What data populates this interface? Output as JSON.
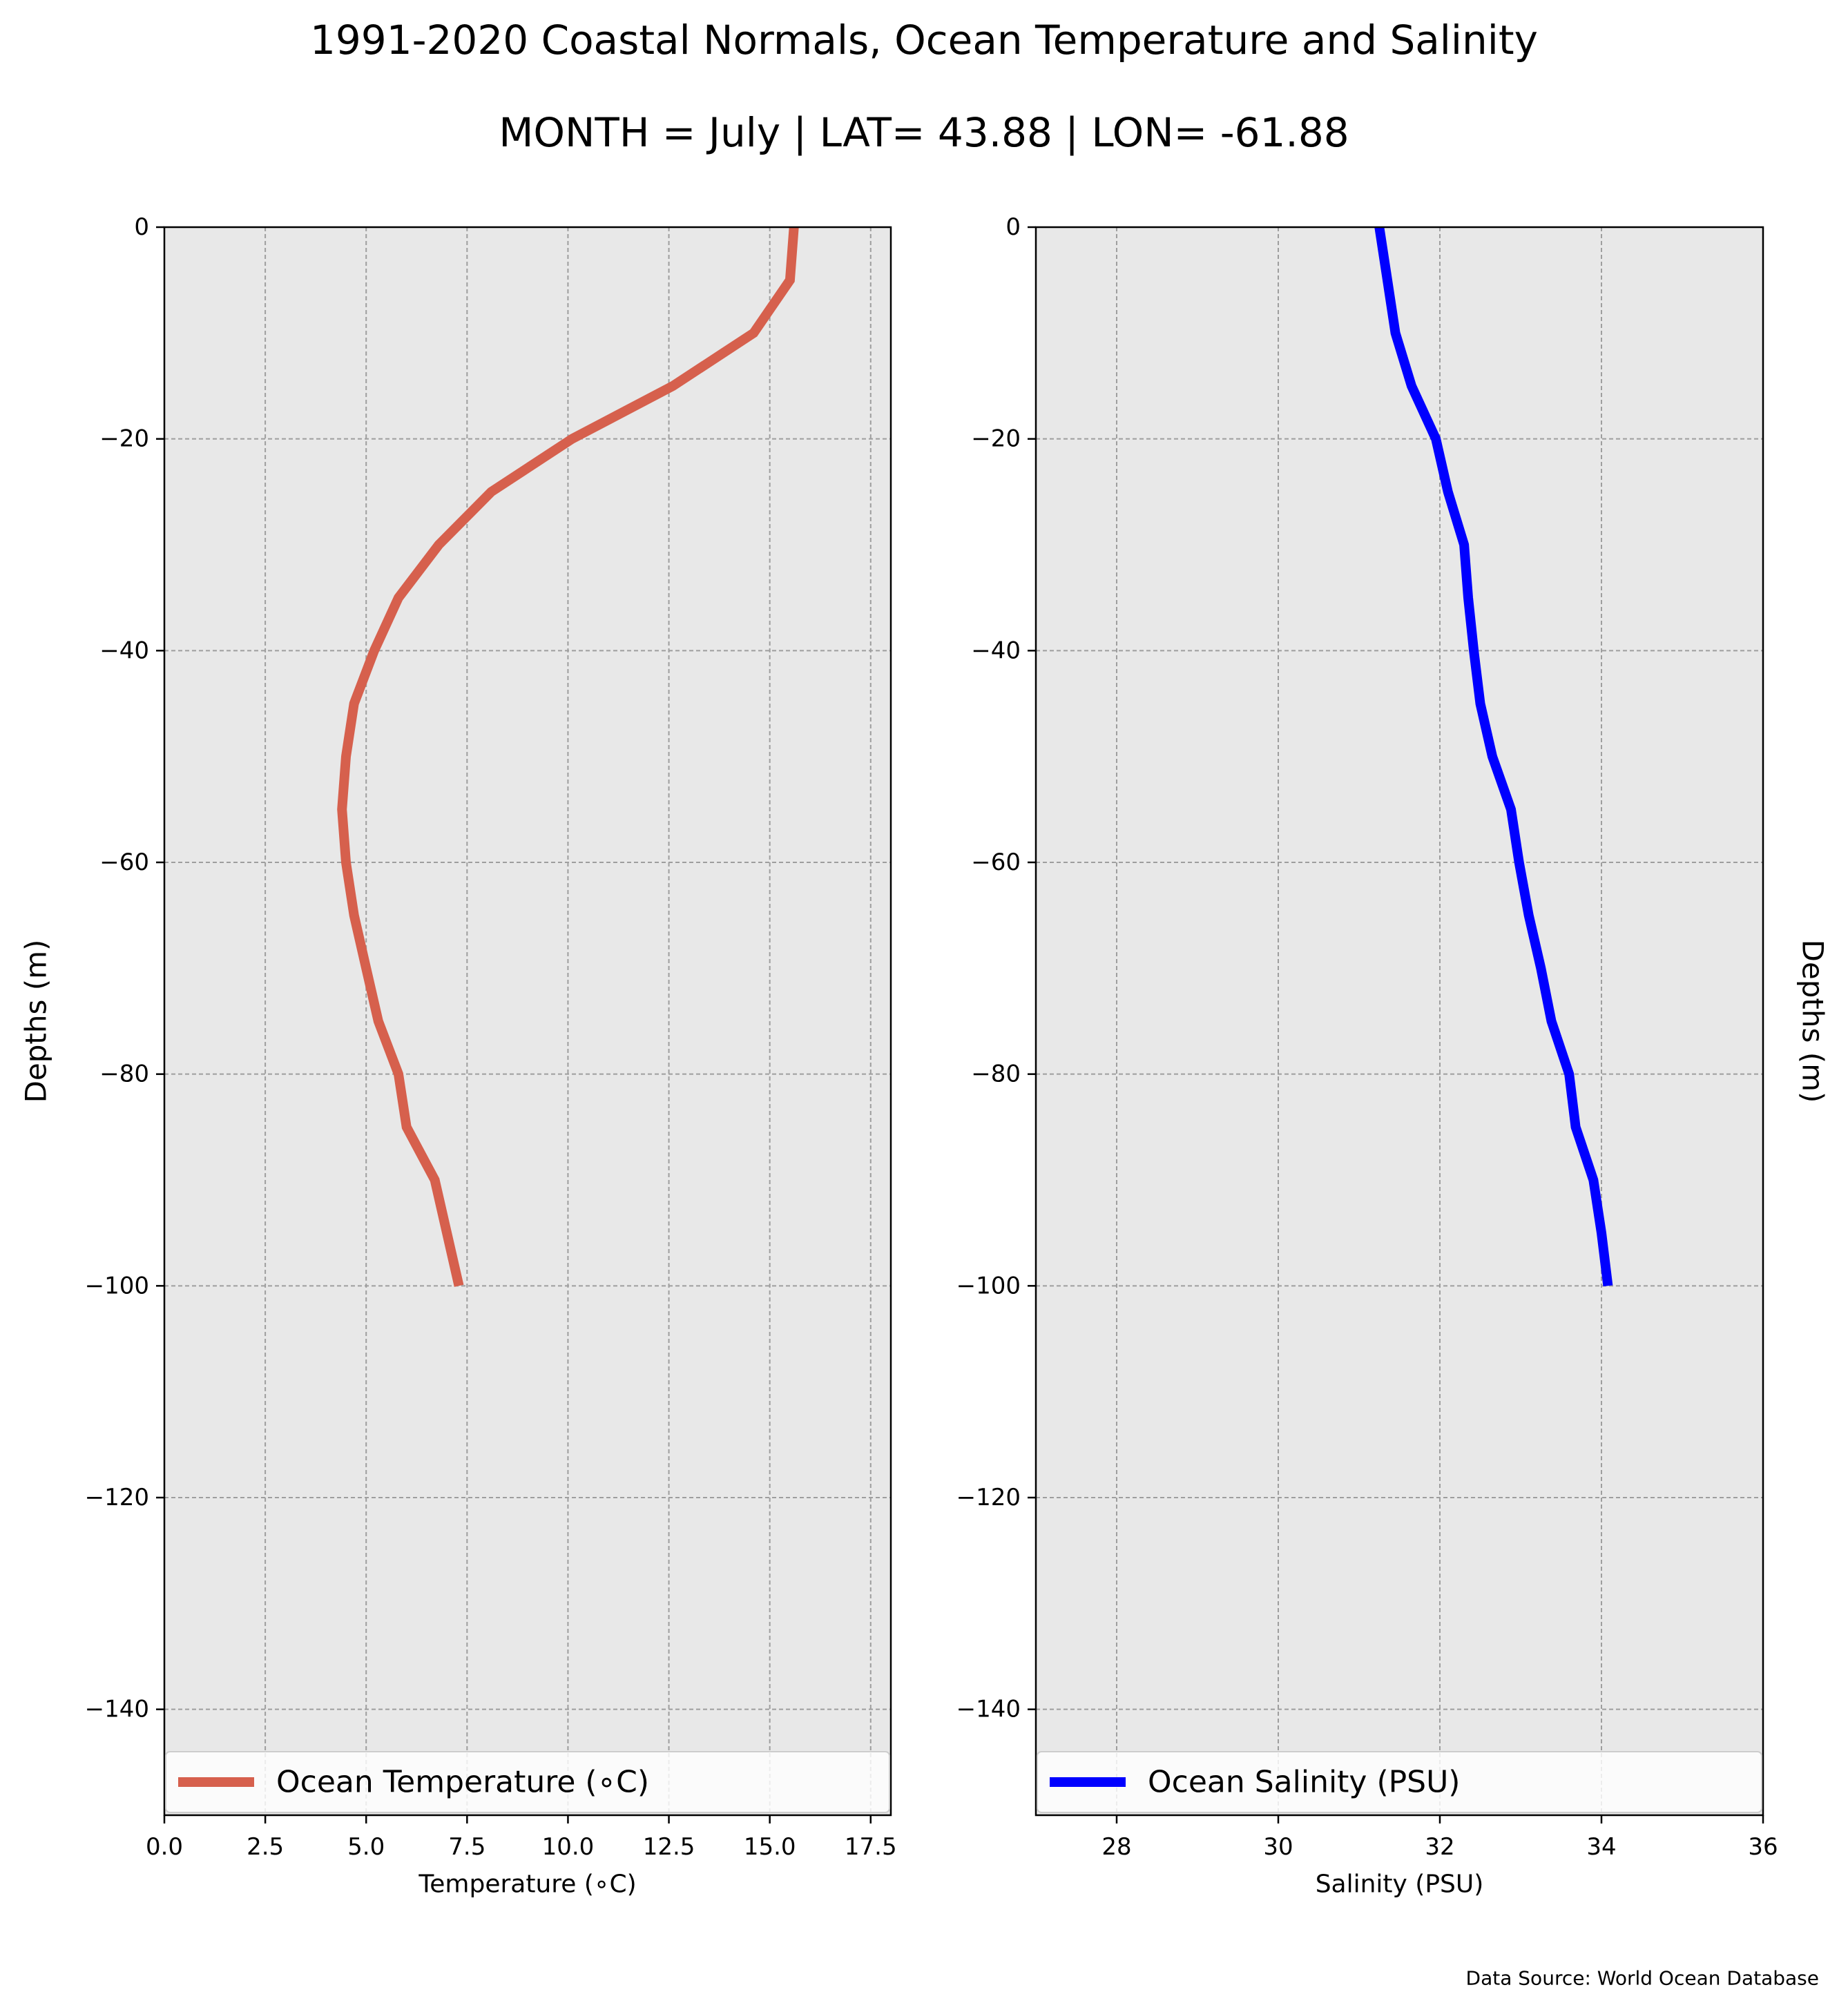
{
  "figure": {
    "title": "1991-2020 Coastal Normals, Ocean Temperature and Salinity",
    "subtitle": "MONTH = July | LAT= 43.88 | LON= -61.88",
    "source": "Data Source: World Ocean Database"
  },
  "chart_data": [
    {
      "type": "line",
      "xlabel": "Temperature (∘C)",
      "ylabel": "Depths (m)",
      "xlim": [
        0,
        18
      ],
      "ylim": [
        -150,
        0
      ],
      "xticks": [
        0,
        2.5,
        5,
        7.5,
        10,
        12.5,
        15,
        17.5
      ],
      "xtick_labels": [
        "0.0",
        "2.5",
        "5.0",
        "7.5",
        "10.0",
        "12.5",
        "15.0",
        "17.5"
      ],
      "yticks": [
        0,
        -20,
        -40,
        -60,
        -80,
        -100,
        -120,
        -140
      ],
      "ytick_labels": [
        "0",
        "−20",
        "−40",
        "−60",
        "−80",
        "−100",
        "−120",
        "−140"
      ],
      "grid": true,
      "legend": "lower-center",
      "ylabel_side": "left",
      "series": [
        {
          "name": "Ocean Temperature (∘C)",
          "color": "#d6604d",
          "x": [
            15.6,
            15.5,
            14.6,
            12.6,
            10.1,
            8.1,
            6.8,
            5.8,
            5.2,
            4.7,
            4.5,
            4.4,
            4.5,
            4.7,
            5.0,
            5.3,
            5.8,
            6.0,
            6.7,
            7.0,
            7.3
          ],
          "y": [
            0,
            -5,
            -10,
            -15,
            -20,
            -25,
            -30,
            -35,
            -40,
            -45,
            -50,
            -55,
            -60,
            -65,
            -70,
            -75,
            -80,
            -85,
            -90,
            -95,
            -100
          ]
        }
      ]
    },
    {
      "type": "line",
      "xlabel": "Salinity (PSU)",
      "ylabel": "Depths (m)",
      "xlim": [
        27,
        36
      ],
      "ylim": [
        -150,
        0
      ],
      "xticks": [
        28,
        30,
        32,
        34,
        36
      ],
      "xtick_labels": [
        "28",
        "30",
        "32",
        "34",
        "36"
      ],
      "yticks": [
        0,
        -20,
        -40,
        -60,
        -80,
        -100,
        -120,
        -140
      ],
      "ytick_labels": [
        "0",
        "−20",
        "−40",
        "−60",
        "−80",
        "−100",
        "−120",
        "−140"
      ],
      "grid": true,
      "legend": "lower-center",
      "ylabel_side": "right",
      "series": [
        {
          "name": "Ocean Salinity (PSU)",
          "color": "#0000ff",
          "x": [
            31.25,
            31.35,
            31.45,
            31.65,
            31.95,
            32.1,
            32.3,
            32.35,
            32.42,
            32.5,
            32.65,
            32.88,
            32.98,
            33.1,
            33.25,
            33.38,
            33.6,
            33.68,
            33.9,
            34.0,
            34.08
          ],
          "y": [
            0,
            -5,
            -10,
            -15,
            -20,
            -25,
            -30,
            -35,
            -40,
            -45,
            -50,
            -55,
            -60,
            -65,
            -70,
            -75,
            -80,
            -85,
            -90,
            -95,
            -100
          ]
        }
      ]
    }
  ]
}
